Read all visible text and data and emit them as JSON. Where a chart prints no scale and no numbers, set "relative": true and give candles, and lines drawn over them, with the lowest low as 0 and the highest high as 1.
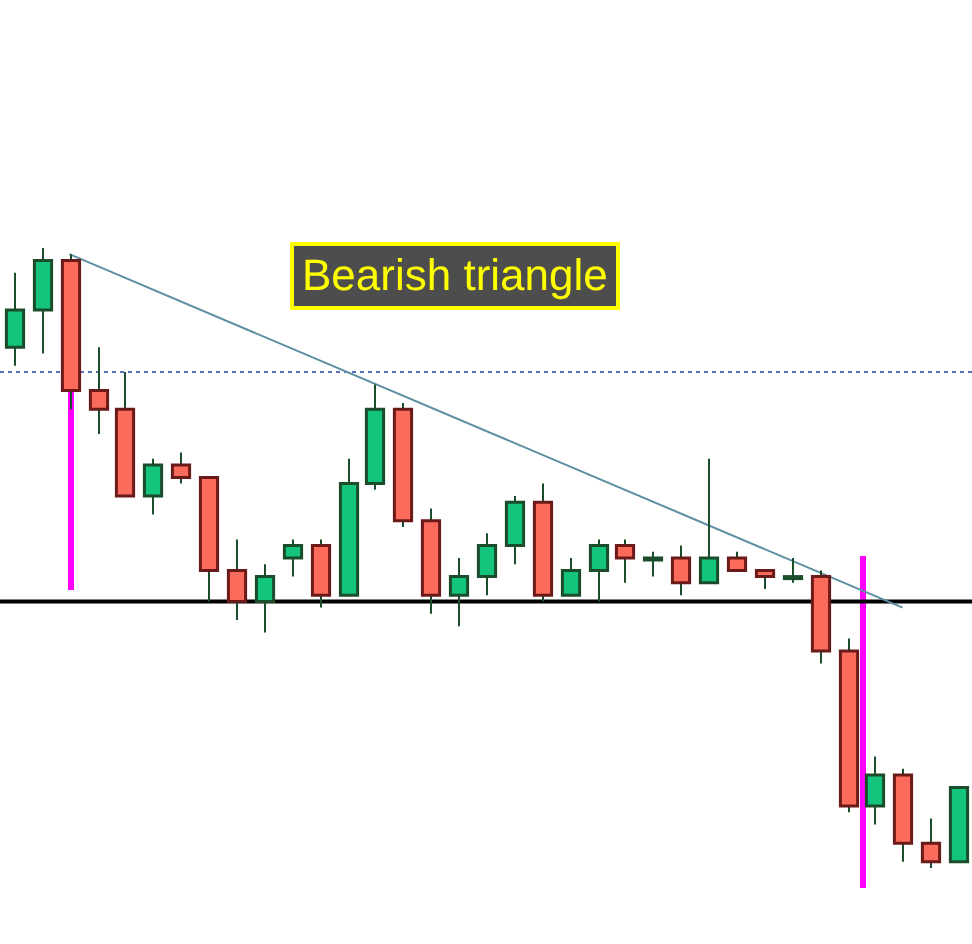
{
  "chart_data": {
    "type": "candlestick",
    "relative": true,
    "annotations": [
      "Bearish triangle"
    ],
    "categories": [
      null,
      null,
      null,
      null,
      null,
      null,
      null,
      null,
      null,
      null,
      null,
      null,
      null,
      null,
      null,
      null,
      null,
      null,
      null,
      null,
      null,
      null,
      null,
      null,
      null,
      null,
      null,
      null,
      null,
      null,
      null,
      null,
      null,
      null,
      null
    ],
    "ohlc": [
      [
        0.84,
        0.96,
        0.81,
        0.9
      ],
      [
        0.9,
        1,
        0.83,
        0.98
      ],
      [
        0.98,
        0.99,
        0.74,
        0.77
      ],
      [
        0.77,
        0.84,
        0.7,
        0.74
      ],
      [
        0.74,
        0.8,
        0.6,
        0.6
      ],
      [
        0.6,
        0.66,
        0.57,
        0.65
      ],
      [
        0.65,
        0.67,
        0.62,
        0.63
      ],
      [
        0.63,
        0.63,
        0.43,
        0.48
      ],
      [
        0.48,
        0.53,
        0.4,
        0.43
      ],
      [
        0.43,
        0.49,
        0.38,
        0.47
      ],
      [
        0.5,
        0.53,
        0.47,
        0.52
      ],
      [
        0.52,
        0.53,
        0.42,
        0.44
      ],
      [
        0.44,
        0.66,
        0.44,
        0.62
      ],
      [
        0.62,
        0.78,
        0.61,
        0.74
      ],
      [
        0.74,
        0.75,
        0.55,
        0.56
      ],
      [
        0.56,
        0.58,
        0.41,
        0.44
      ],
      [
        0.44,
        0.5,
        0.39,
        0.47
      ],
      [
        0.47,
        0.54,
        0.44,
        0.52
      ],
      [
        0.52,
        0.6,
        0.49,
        0.59
      ],
      [
        0.59,
        0.62,
        0.43,
        0.44
      ],
      [
        0.44,
        0.5,
        0.44,
        0.48
      ],
      [
        0.48,
        0.53,
        0.43,
        0.52
      ],
      [
        0.52,
        0.53,
        0.46,
        0.5
      ],
      [
        0.5,
        0.51,
        0.47,
        0.5
      ],
      [
        0.5,
        0.52,
        0.44,
        0.46
      ],
      [
        0.46,
        0.66,
        0.46,
        0.5
      ],
      [
        0.5,
        0.51,
        0.48,
        0.48
      ],
      [
        0.48,
        0.48,
        0.45,
        0.47
      ],
      [
        0.47,
        0.5,
        0.46,
        0.47
      ],
      [
        0.47,
        0.48,
        0.33,
        0.35
      ],
      [
        0.35,
        0.37,
        0.09,
        0.1
      ],
      [
        0.1,
        0.18,
        0.07,
        0.15
      ],
      [
        0.15,
        0.16,
        0.01,
        0.04
      ],
      [
        0.04,
        0.08,
        0,
        0.01
      ],
      [
        0.01,
        0.13,
        0.01,
        0.13
      ]
    ],
    "colors": [
      "#12c47c",
      "#12c47c",
      "#fb6b5b",
      "#fb6b5b",
      "#fb6b5b",
      "#12c47c",
      "#fb6b5b",
      "#fb6b5b",
      "#fb6b5b",
      "#12c47c",
      "#12c47c",
      "#fb6b5b",
      "#12c47c",
      "#12c47c",
      "#fb6b5b",
      "#fb6b5b",
      "#12c47c",
      "#12c47c",
      "#12c47c",
      "#fb6b5b",
      "#12c47c",
      "#12c47c",
      "#fb6b5b",
      "#12c47c",
      "#fb6b5b",
      "#12c47c",
      "#fb6b5b",
      "#fb6b5b",
      "#12c47c",
      "#fb6b5b",
      "#fb6b5b",
      "#12c47c",
      "#fb6b5b",
      "#fb6b5b",
      "#12c47c"
    ],
    "series": [
      {
        "type": "line",
        "color": "#5b8fa0",
        "values": [
          null,
          null,
          0.99,
          null,
          null,
          null,
          null,
          null,
          null,
          null,
          null,
          null,
          null,
          null,
          null,
          null,
          null,
          null,
          null,
          null,
          null,
          null,
          null,
          null,
          null,
          null,
          null,
          null,
          null,
          null,
          null,
          null,
          0.42,
          null,
          null
        ]
      }
    ],
    "ref_lines": [
      {
        "axis": "y",
        "value": 0.43,
        "color": "#000000",
        "line_style": "solid"
      },
      {
        "axis": "y",
        "value": 0.8,
        "color": "#5a6fc0",
        "line_style": "dotted"
      }
    ]
  }
}
